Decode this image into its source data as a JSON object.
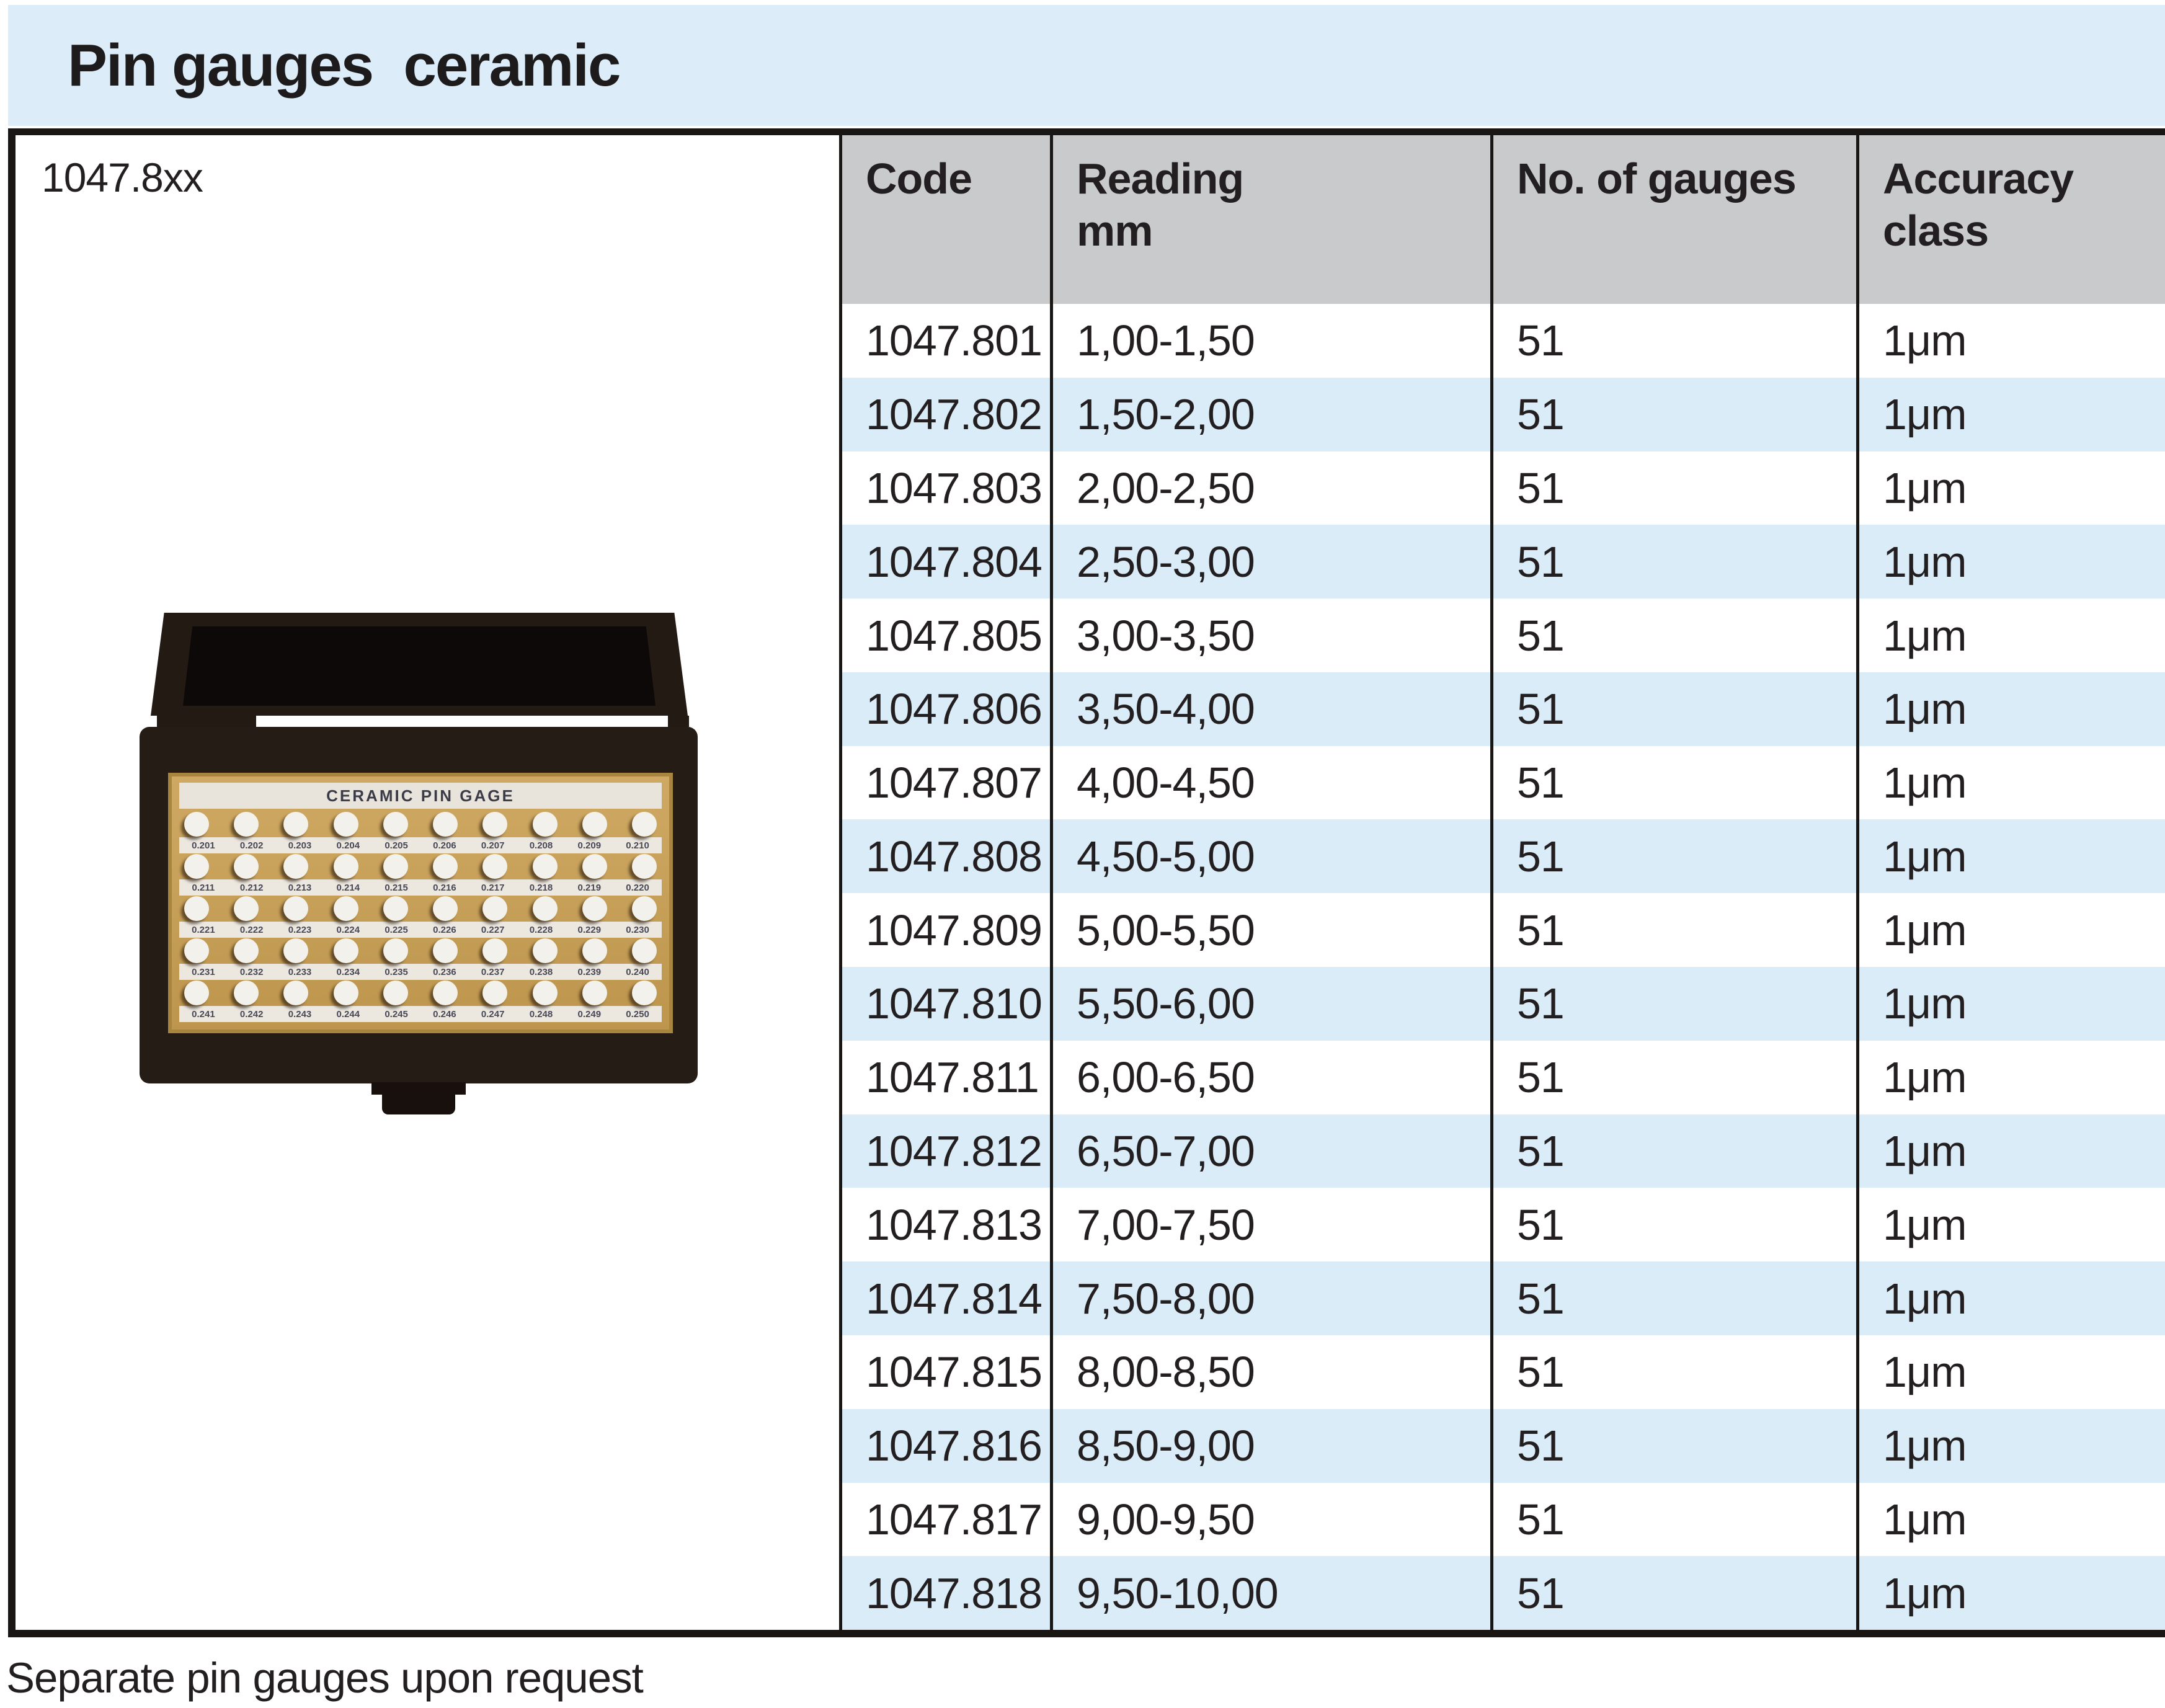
{
  "title": "Pin gauges  ceramic",
  "product_code": "1047.8xx",
  "footer_note": "Separate pin gauges upon request",
  "table": {
    "columns": [
      "Code",
      "Reading\nmm",
      "No. of gauges",
      "Accuracy\nclass"
    ],
    "rows": [
      {
        "code": "1047.801",
        "reading": "1,00-1,50",
        "gauges": "51",
        "accuracy": "1μm"
      },
      {
        "code": "1047.802",
        "reading": "1,50-2,00",
        "gauges": "51",
        "accuracy": "1μm"
      },
      {
        "code": "1047.803",
        "reading": "2,00-2,50",
        "gauges": "51",
        "accuracy": "1μm"
      },
      {
        "code": "1047.804",
        "reading": "2,50-3,00",
        "gauges": "51",
        "accuracy": "1μm"
      },
      {
        "code": "1047.805",
        "reading": "3,00-3,50",
        "gauges": "51",
        "accuracy": "1μm"
      },
      {
        "code": "1047.806",
        "reading": "3,50-4,00",
        "gauges": "51",
        "accuracy": "1μm"
      },
      {
        "code": "1047.807",
        "reading": "4,00-4,50",
        "gauges": "51",
        "accuracy": "1μm"
      },
      {
        "code": "1047.808",
        "reading": "4,50-5,00",
        "gauges": "51",
        "accuracy": "1μm"
      },
      {
        "code": "1047.809",
        "reading": "5,00-5,50",
        "gauges": "51",
        "accuracy": "1μm"
      },
      {
        "code": "1047.810",
        "reading": "5,50-6,00",
        "gauges": "51",
        "accuracy": "1μm"
      },
      {
        "code": "1047.811",
        "reading": "6,00-6,50",
        "gauges": "51",
        "accuracy": "1μm"
      },
      {
        "code": "1047.812",
        "reading": "6,50-7,00",
        "gauges": "51",
        "accuracy": "1μm"
      },
      {
        "code": "1047.813",
        "reading": "7,00-7,50",
        "gauges": "51",
        "accuracy": "1μm"
      },
      {
        "code": "1047.814",
        "reading": "7,50-8,00",
        "gauges": "51",
        "accuracy": "1μm"
      },
      {
        "code": "1047.815",
        "reading": "8,00-8,50",
        "gauges": "51",
        "accuracy": "1μm"
      },
      {
        "code": "1047.816",
        "reading": "8,50-9,00",
        "gauges": "51",
        "accuracy": "1μm"
      },
      {
        "code": "1047.817",
        "reading": "9,00-9,50",
        "gauges": "51",
        "accuracy": "1μm"
      },
      {
        "code": "1047.818",
        "reading": "9,50-10,00",
        "gauges": "51",
        "accuracy": "1μm"
      }
    ]
  },
  "photo": {
    "label": "CERAMIC PIN GAGE",
    "pin_rows": [
      [
        "0.201",
        "0.202",
        "0.203",
        "0.204",
        "0.205",
        "0.206",
        "0.207",
        "0.208",
        "0.209",
        "0.210"
      ],
      [
        "0.211",
        "0.212",
        "0.213",
        "0.214",
        "0.215",
        "0.216",
        "0.217",
        "0.218",
        "0.219",
        "0.220"
      ],
      [
        "0.221",
        "0.222",
        "0.223",
        "0.224",
        "0.225",
        "0.226",
        "0.227",
        "0.228",
        "0.229",
        "0.230"
      ],
      [
        "0.231",
        "0.232",
        "0.233",
        "0.234",
        "0.235",
        "0.236",
        "0.237",
        "0.238",
        "0.239",
        "0.240"
      ],
      [
        "0.241",
        "0.242",
        "0.243",
        "0.244",
        "0.245",
        "0.246",
        "0.247",
        "0.248",
        "0.249",
        "0.250"
      ]
    ]
  },
  "colors": {
    "title_band_blue": "#dcedf9",
    "row_stripe_blue": "#daecf8",
    "header_gray": "#c9cacc",
    "ink": "#231f20",
    "border_black": "#1a1614"
  }
}
